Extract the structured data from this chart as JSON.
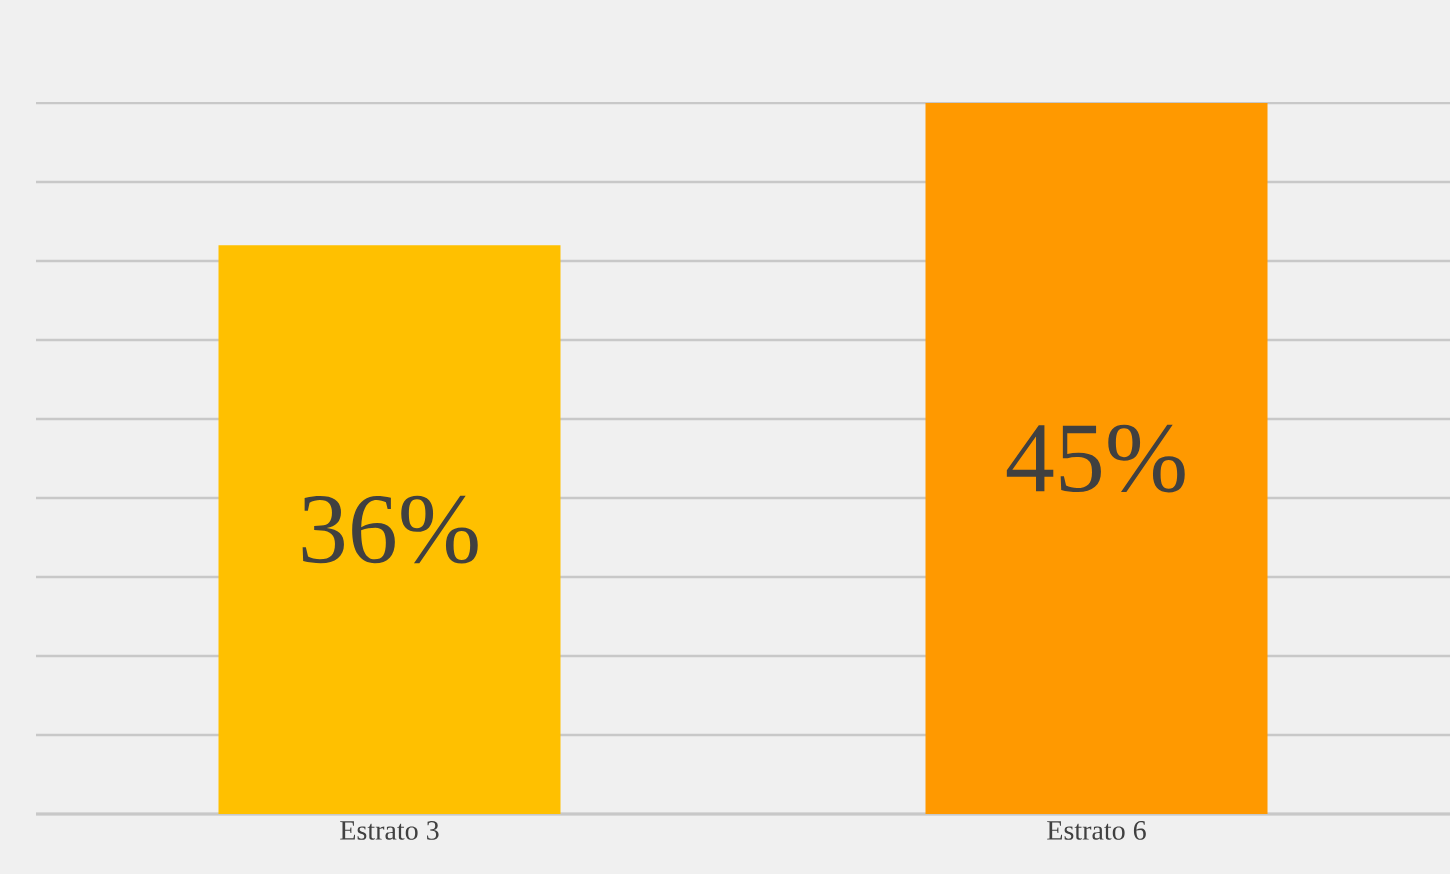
{
  "chart_data": {
    "type": "bar",
    "categories": [
      "Estrato 3",
      "Estrato 6"
    ],
    "values": [
      36,
      45
    ],
    "colors": [
      "#ffc000",
      "#ff9900"
    ],
    "value_labels": [
      "36%",
      "45%"
    ],
    "grid": "y",
    "tick_labels": "x"
  }
}
